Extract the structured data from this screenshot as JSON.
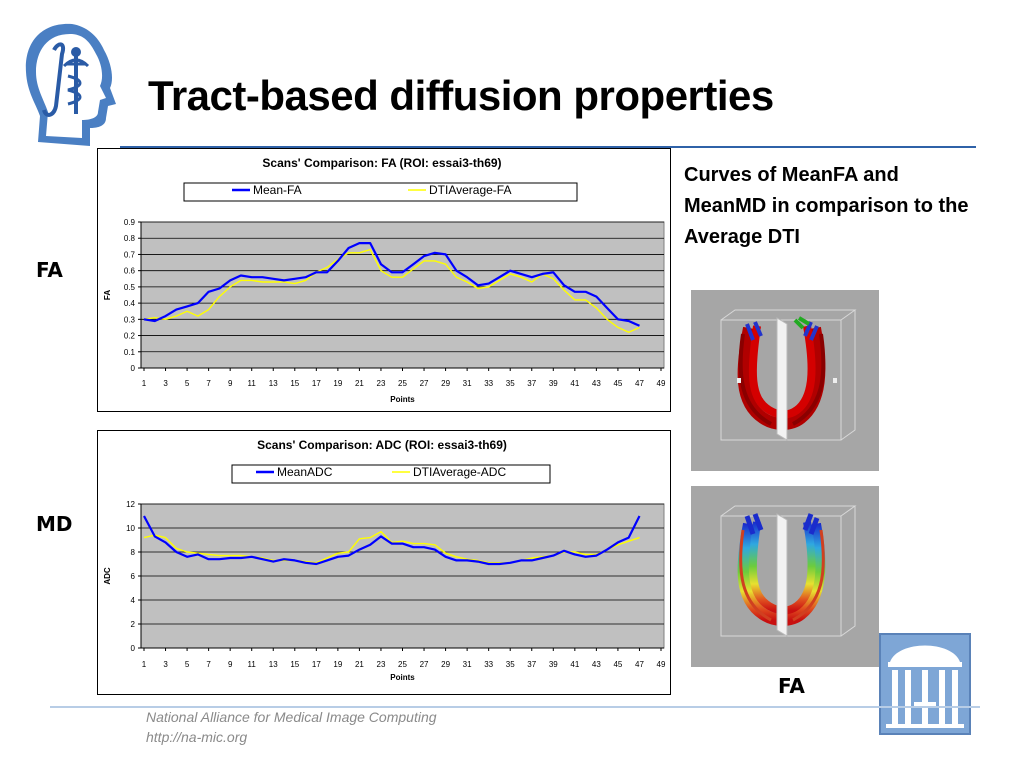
{
  "slide": {
    "title": "Tract-based diffusion properties",
    "caption": "Curves of MeanFA and MeanMD in comparison to the Average DTI",
    "label_fa_left": "FA",
    "label_md_left": "MD",
    "label_fa_image": "FA"
  },
  "footer": {
    "org": "National Alliance for Medical Image Computing",
    "url": "http://na-mic.org"
  },
  "colors": {
    "accent": "#2f62a8",
    "mean_series": "#0000ff",
    "dti_series": "#ffff00",
    "plot_bg": "#c0c0c0"
  },
  "logos": [
    "na-mic-head-logo",
    "unc-old-well-logo"
  ],
  "chart_data": [
    {
      "type": "line",
      "title": "Scans' Comparison: FA (ROI: essai3-th69)",
      "xlabel": "Points",
      "ylabel": "FA",
      "ylim": [
        0,
        0.9
      ],
      "yticks": [
        "0",
        "0.1",
        "0.2",
        "0.3",
        "0.4",
        "0.5",
        "0.6",
        "0.7",
        "0.8",
        "0.9"
      ],
      "xticks": [
        "1",
        "3",
        "5",
        "7",
        "9",
        "11",
        "13",
        "15",
        "17",
        "19",
        "21",
        "23",
        "25",
        "27",
        "29",
        "31",
        "33",
        "35",
        "37",
        "39",
        "41",
        "43",
        "45",
        "47",
        "49"
      ],
      "xrange": [
        1,
        49
      ],
      "grid": true,
      "legend": "top",
      "series": [
        {
          "name": "Mean-FA",
          "color": "#0000ff",
          "x": [
            1,
            2,
            3,
            4,
            5,
            6,
            7,
            8,
            9,
            10,
            11,
            12,
            13,
            14,
            15,
            16,
            17,
            18,
            19,
            20,
            21,
            22,
            23,
            24,
            25,
            26,
            27,
            28,
            29,
            30,
            31,
            32,
            33,
            34,
            35,
            36,
            37,
            38,
            39,
            40,
            41,
            42,
            43,
            44,
            45,
            46,
            47
          ],
          "values": [
            0.3,
            0.29,
            0.32,
            0.36,
            0.38,
            0.4,
            0.47,
            0.49,
            0.54,
            0.57,
            0.56,
            0.56,
            0.55,
            0.54,
            0.55,
            0.56,
            0.59,
            0.59,
            0.66,
            0.74,
            0.77,
            0.77,
            0.64,
            0.59,
            0.59,
            0.64,
            0.69,
            0.71,
            0.7,
            0.6,
            0.56,
            0.51,
            0.52,
            0.56,
            0.6,
            0.58,
            0.56,
            0.58,
            0.59,
            0.51,
            0.47,
            0.47,
            0.44,
            0.37,
            0.3,
            0.29,
            0.26
          ]
        },
        {
          "name": "DTIAverage-FA",
          "color": "#ffff00",
          "x": [
            1,
            2,
            3,
            4,
            5,
            6,
            7,
            8,
            9,
            10,
            11,
            12,
            13,
            14,
            15,
            16,
            17,
            18,
            19,
            20,
            21,
            22,
            23,
            24,
            25,
            26,
            27,
            28,
            29,
            30,
            31,
            32,
            33,
            34,
            35,
            36,
            37,
            38,
            39,
            40,
            41,
            42,
            43,
            44,
            45,
            46,
            47
          ],
          "values": [
            0.3,
            0.31,
            0.3,
            0.32,
            0.35,
            0.32,
            0.36,
            0.44,
            0.5,
            0.54,
            0.54,
            0.53,
            0.53,
            0.53,
            0.52,
            0.54,
            0.59,
            0.62,
            0.67,
            0.71,
            0.71,
            0.73,
            0.6,
            0.56,
            0.56,
            0.61,
            0.66,
            0.66,
            0.64,
            0.56,
            0.53,
            0.49,
            0.5,
            0.54,
            0.58,
            0.56,
            0.53,
            0.58,
            0.55,
            0.48,
            0.42,
            0.42,
            0.37,
            0.3,
            0.25,
            0.22,
            0.25
          ]
        }
      ]
    },
    {
      "type": "line",
      "title": "Scans' Comparison: ADC (ROI: essai3-th69)",
      "xlabel": "Points",
      "ylabel": "ADC",
      "ylim": [
        0,
        12
      ],
      "yticks": [
        "0",
        "2",
        "4",
        "6",
        "8",
        "10",
        "12"
      ],
      "xticks": [
        "1",
        "3",
        "5",
        "7",
        "9",
        "11",
        "13",
        "15",
        "17",
        "19",
        "21",
        "23",
        "25",
        "27",
        "29",
        "31",
        "33",
        "35",
        "37",
        "39",
        "41",
        "43",
        "45",
        "47",
        "49"
      ],
      "xrange": [
        1,
        49
      ],
      "grid": true,
      "legend": "top",
      "series": [
        {
          "name": "MeanADC",
          "color": "#0000ff",
          "x": [
            1,
            2,
            3,
            4,
            5,
            6,
            7,
            8,
            9,
            10,
            11,
            12,
            13,
            14,
            15,
            16,
            17,
            18,
            19,
            20,
            21,
            22,
            23,
            24,
            25,
            26,
            27,
            28,
            29,
            30,
            31,
            32,
            33,
            34,
            35,
            36,
            37,
            38,
            39,
            40,
            41,
            42,
            43,
            44,
            45,
            46,
            47
          ],
          "values": [
            11.0,
            9.3,
            8.8,
            8.0,
            7.6,
            7.8,
            7.4,
            7.4,
            7.5,
            7.5,
            7.6,
            7.4,
            7.2,
            7.4,
            7.3,
            7.1,
            7.0,
            7.3,
            7.6,
            7.7,
            8.2,
            8.6,
            9.3,
            8.7,
            8.7,
            8.4,
            8.4,
            8.2,
            7.6,
            7.3,
            7.3,
            7.2,
            7.0,
            7.0,
            7.1,
            7.3,
            7.3,
            7.5,
            7.7,
            8.1,
            7.8,
            7.6,
            7.7,
            8.2,
            8.8,
            9.2,
            11.0
          ]
        },
        {
          "name": "DTIAverage-ADC",
          "color": "#ffff00",
          "x": [
            1,
            2,
            3,
            4,
            5,
            6,
            7,
            8,
            9,
            10,
            11,
            12,
            13,
            14,
            15,
            16,
            17,
            18,
            19,
            20,
            21,
            22,
            23,
            24,
            25,
            26,
            27,
            28,
            29,
            30,
            31,
            32,
            33,
            34,
            35,
            36,
            37,
            38,
            39,
            40,
            41,
            42,
            43,
            44,
            45,
            46,
            47
          ],
          "values": [
            9.2,
            9.4,
            9.2,
            8.3,
            8.0,
            7.9,
            7.8,
            7.7,
            7.7,
            7.7,
            7.6,
            7.5,
            7.3,
            7.3,
            7.3,
            7.2,
            7.1,
            7.5,
            7.9,
            8.0,
            9.1,
            9.2,
            9.7,
            8.8,
            8.9,
            8.7,
            8.7,
            8.6,
            7.9,
            7.6,
            7.4,
            7.3,
            7.1,
            7.1,
            7.1,
            7.3,
            7.5,
            7.6,
            7.7,
            8.0,
            8.0,
            7.8,
            7.8,
            8.2,
            8.6,
            8.9,
            9.2
          ]
        }
      ]
    }
  ]
}
